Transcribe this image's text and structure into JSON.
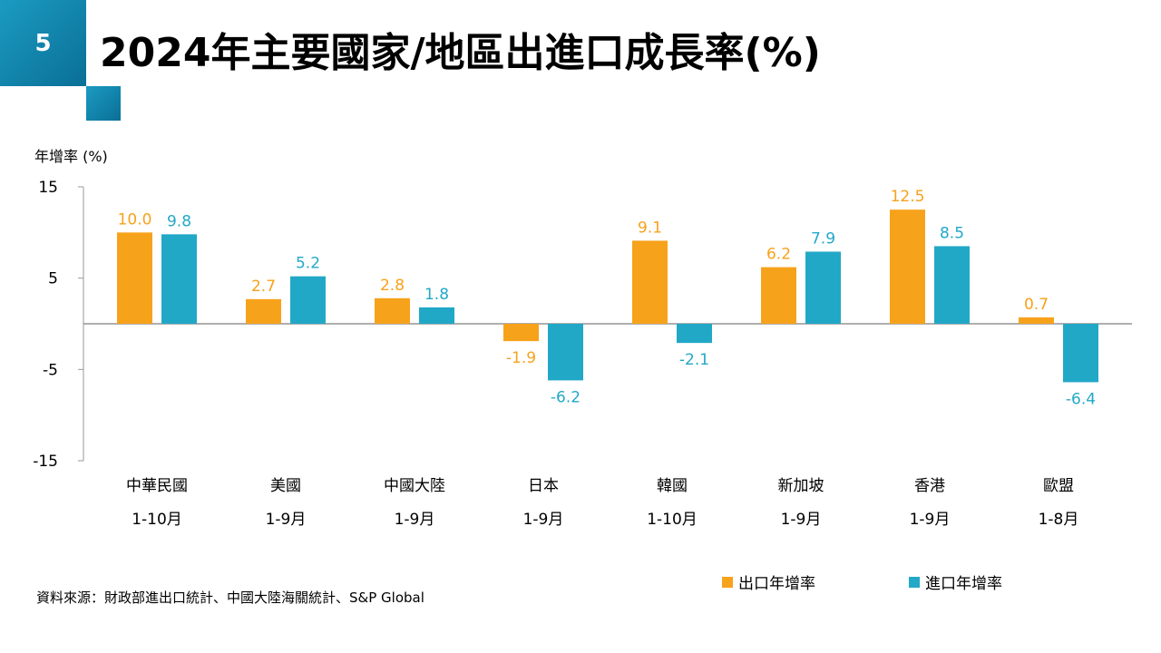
{
  "slide_number": "5",
  "title": "2024年主要國家/地區出進口成長率(%)",
  "source": "資料來源：財政部進出口統計、中國大陸海關統計、S&P Global",
  "colors": {
    "export": "#f7a21b",
    "import": "#22a8c7",
    "accent": "#1b9bc1"
  },
  "chart_data": {
    "type": "bar",
    "ylabel": "年增率 (%)",
    "ylim": [
      -15,
      15
    ],
    "yticks": [
      "15",
      "5",
      "-5",
      "-15"
    ],
    "categories": [
      "中華民國",
      "美國",
      "中國大陸",
      "日本",
      "韓國",
      "新加坡",
      "香港",
      "歐盟"
    ],
    "periods": [
      "1-10月",
      "1-9月",
      "1-9月",
      "1-9月",
      "1-10月",
      "1-9月",
      "1-9月",
      "1-8月"
    ],
    "legend_position": "bottom-right",
    "series": [
      {
        "name": "出口年增率",
        "values": [
          10.0,
          2.7,
          2.8,
          -1.9,
          9.1,
          6.2,
          12.5,
          0.7
        ],
        "labels": [
          "10.0",
          "2.7",
          "2.8",
          "-1.9",
          "9.1",
          "6.2",
          "12.5",
          "0.7"
        ]
      },
      {
        "name": "進口年增率",
        "values": [
          9.8,
          5.2,
          1.8,
          -6.2,
          -2.1,
          7.9,
          8.5,
          -6.4
        ],
        "labels": [
          "9.8",
          "5.2",
          "1.8",
          "-6.2",
          "-2.1",
          "7.9",
          "8.5",
          "-6.4"
        ]
      }
    ]
  }
}
